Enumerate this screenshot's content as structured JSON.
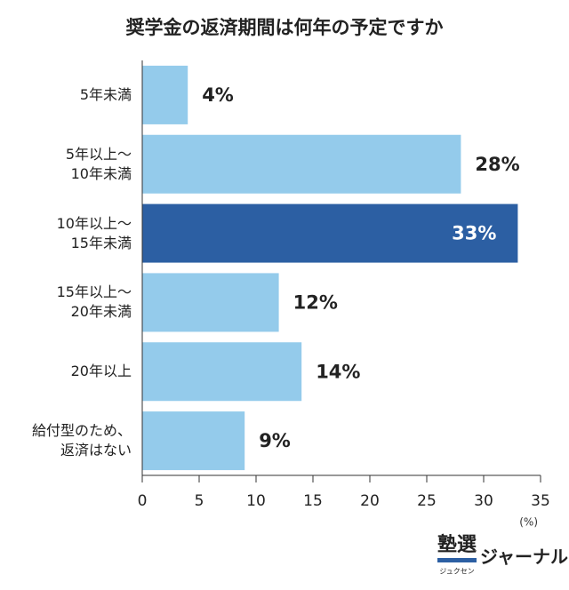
{
  "chart_data": {
    "type": "hbar",
    "title": "奨学金の返済期間は何年の予定ですか",
    "categories": [
      "5年未満",
      "5年以上～\n10年未満",
      "10年以上～\n15年未満",
      "15年以上～\n20年未満",
      "20年以上",
      "給付型のため、\n返済はない"
    ],
    "values": [
      4,
      28,
      33,
      12,
      14,
      9
    ],
    "value_labels": [
      "4%",
      "28%",
      "33%",
      "12%",
      "14%",
      "9%"
    ],
    "color": "#94cbeb",
    "highlight_color": "#2c5fa3",
    "highlight_index": 2,
    "xlim": [
      0,
      35
    ],
    "xticks": [
      0,
      5,
      10,
      15,
      20,
      25,
      30,
      35
    ],
    "x_unit": "(%)",
    "logo": {
      "main": "塾選",
      "reading": "ジュクセン",
      "sub": "ジャーナル"
    }
  }
}
